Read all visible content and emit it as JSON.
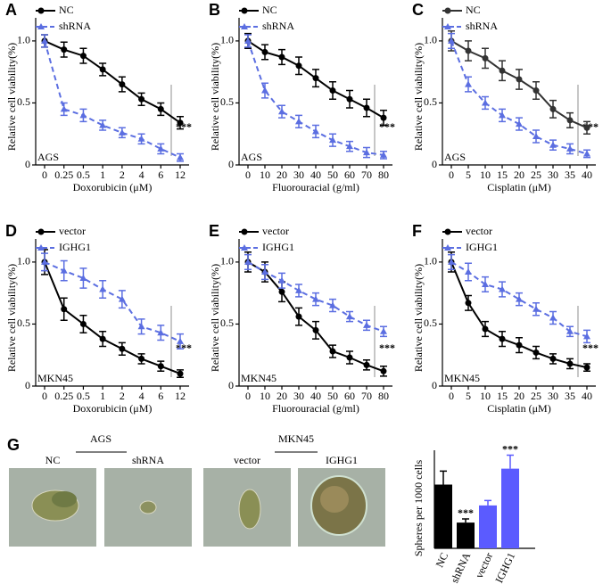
{
  "chart_data": [
    {
      "type": "line",
      "panel": "A",
      "ylabel": "Relative cell viability(%)",
      "xlabel": "Doxorubicin (μM)",
      "corner_label": "AGS",
      "annotation": "***",
      "categories": [
        "0",
        "0.25",
        "0.5",
        "1",
        "2",
        "4",
        "6",
        "12"
      ],
      "ylim": [
        0,
        1.1
      ],
      "yticks": [
        0,
        0.5,
        {
          "value": 1,
          "label": "1.0"
        }
      ],
      "series": [
        {
          "name": "NC",
          "color": "#000000",
          "dashed": false,
          "marker": "circle",
          "values": [
            1.0,
            0.93,
            0.88,
            0.77,
            0.65,
            0.53,
            0.45,
            0.34
          ],
          "errors": [
            0.05,
            0.06,
            0.06,
            0.05,
            0.06,
            0.05,
            0.05,
            0.05
          ]
        },
        {
          "name": "shRNA",
          "color": "#5b6ee1",
          "dashed": true,
          "marker": "triangle",
          "values": [
            1.0,
            0.45,
            0.4,
            0.32,
            0.26,
            0.21,
            0.13,
            0.06
          ],
          "errors": [
            0.05,
            0.05,
            0.05,
            0.04,
            0.04,
            0.04,
            0.04,
            0.03
          ]
        }
      ]
    },
    {
      "type": "line",
      "panel": "B",
      "ylabel": "Relative cell viability(%)",
      "xlabel": "Fluorouracial (g/ml)",
      "corner_label": "AGS",
      "annotation": "***",
      "categories": [
        "0",
        "10",
        "20",
        "30",
        "40",
        "50",
        "60",
        "70",
        "80"
      ],
      "ylim": [
        0,
        1.1
      ],
      "yticks": [
        0,
        0.5,
        {
          "value": 1,
          "label": "1.0"
        }
      ],
      "series": [
        {
          "name": "NC",
          "color": "#000000",
          "dashed": false,
          "marker": "circle",
          "values": [
            1.0,
            0.91,
            0.87,
            0.8,
            0.7,
            0.6,
            0.53,
            0.46,
            0.38
          ],
          "errors": [
            0.06,
            0.06,
            0.06,
            0.07,
            0.07,
            0.07,
            0.07,
            0.07,
            0.06
          ]
        },
        {
          "name": "shRNA",
          "color": "#5b6ee1",
          "dashed": true,
          "marker": "triangle",
          "values": [
            1.0,
            0.6,
            0.43,
            0.35,
            0.27,
            0.2,
            0.15,
            0.1,
            0.08
          ],
          "errors": [
            0.05,
            0.06,
            0.05,
            0.05,
            0.05,
            0.05,
            0.04,
            0.04,
            0.03
          ]
        }
      ]
    },
    {
      "type": "line",
      "panel": "C",
      "ylabel": "Relative cell viability(%)",
      "xlabel": "Cisplatin (μM)",
      "corner_label": "AGS",
      "annotation": "***",
      "categories": [
        "0",
        "5",
        "10",
        "15",
        "20",
        "25",
        "30",
        "35",
        "40"
      ],
      "ylim": [
        0,
        1.1
      ],
      "yticks": [
        0,
        0.5,
        {
          "value": 1,
          "label": "1.0"
        }
      ],
      "series": [
        {
          "name": "NC",
          "color": "#333333",
          "dashed": false,
          "marker": "circle",
          "values": [
            1.0,
            0.92,
            0.86,
            0.76,
            0.69,
            0.6,
            0.45,
            0.36,
            0.3
          ],
          "errors": [
            0.08,
            0.08,
            0.08,
            0.08,
            0.08,
            0.07,
            0.07,
            0.06,
            0.05
          ]
        },
        {
          "name": "shRNA",
          "color": "#5b6ee1",
          "dashed": true,
          "marker": "triangle",
          "values": [
            1.0,
            0.65,
            0.5,
            0.4,
            0.33,
            0.23,
            0.16,
            0.13,
            0.09
          ],
          "errors": [
            0.06,
            0.06,
            0.05,
            0.05,
            0.05,
            0.05,
            0.04,
            0.04,
            0.03
          ]
        }
      ]
    },
    {
      "type": "line",
      "panel": "D",
      "ylabel": "Relative cell viability(%)",
      "xlabel": "Doxorubicin (μM)",
      "corner_label": "MKN45",
      "annotation": "***",
      "categories": [
        "0",
        "0.25",
        "0.5",
        "1",
        "2",
        "4",
        "6",
        "12"
      ],
      "ylim": [
        0,
        1.1
      ],
      "yticks": [
        0,
        0.5,
        {
          "value": 1,
          "label": "1.0"
        }
      ],
      "series": [
        {
          "name": "vector",
          "color": "#000000",
          "dashed": false,
          "marker": "circle",
          "values": [
            1.0,
            0.62,
            0.5,
            0.38,
            0.3,
            0.22,
            0.16,
            0.1
          ],
          "errors": [
            0.1,
            0.09,
            0.07,
            0.06,
            0.05,
            0.04,
            0.04,
            0.03
          ]
        },
        {
          "name": "IGHG1",
          "color": "#5b6ee1",
          "dashed": true,
          "marker": "triangle",
          "values": [
            1.0,
            0.93,
            0.87,
            0.78,
            0.7,
            0.48,
            0.43,
            0.36
          ],
          "errors": [
            0.07,
            0.08,
            0.08,
            0.07,
            0.07,
            0.06,
            0.06,
            0.06
          ]
        }
      ]
    },
    {
      "type": "line",
      "panel": "E",
      "ylabel": "Relative cell viability(%)",
      "xlabel": "Fluorouracial (g/ml)",
      "corner_label": "MKN45",
      "annotation": "***",
      "categories": [
        "0",
        "10",
        "20",
        "30",
        "40",
        "50",
        "60",
        "70",
        "80"
      ],
      "ylim": [
        0,
        1.1
      ],
      "yticks": [
        0,
        0.5,
        {
          "value": 1,
          "label": "1.0"
        }
      ],
      "series": [
        {
          "name": "vector",
          "color": "#000000",
          "dashed": false,
          "marker": "circle",
          "values": [
            1.0,
            0.92,
            0.76,
            0.56,
            0.45,
            0.28,
            0.23,
            0.17,
            0.12
          ],
          "errors": [
            0.08,
            0.08,
            0.08,
            0.07,
            0.07,
            0.05,
            0.05,
            0.04,
            0.04
          ]
        },
        {
          "name": "IGHG1",
          "color": "#5b6ee1",
          "dashed": true,
          "marker": "triangle",
          "values": [
            1.0,
            0.92,
            0.85,
            0.77,
            0.7,
            0.65,
            0.56,
            0.49,
            0.44
          ],
          "errors": [
            0.06,
            0.06,
            0.06,
            0.05,
            0.05,
            0.05,
            0.04,
            0.04,
            0.04
          ]
        }
      ]
    },
    {
      "type": "line",
      "panel": "F",
      "ylabel": "Relative cell viability(%)",
      "xlabel": "Cisplatin (μM)",
      "corner_label": "MKN45",
      "annotation": "***",
      "categories": [
        "0",
        "5",
        "10",
        "15",
        "20",
        "25",
        "30",
        "35",
        "40"
      ],
      "ylim": [
        0,
        1.1
      ],
      "yticks": [
        0,
        0.5,
        {
          "value": 1,
          "label": "1.0"
        }
      ],
      "series": [
        {
          "name": "vector",
          "color": "#000000",
          "dashed": false,
          "marker": "circle",
          "values": [
            1.0,
            0.67,
            0.46,
            0.38,
            0.33,
            0.27,
            0.22,
            0.18,
            0.15
          ],
          "errors": [
            0.08,
            0.06,
            0.06,
            0.06,
            0.06,
            0.05,
            0.04,
            0.04,
            0.03
          ]
        },
        {
          "name": "IGHG1",
          "color": "#5b6ee1",
          "dashed": true,
          "marker": "triangle",
          "values": [
            1.0,
            0.92,
            0.82,
            0.78,
            0.7,
            0.62,
            0.55,
            0.44,
            0.4
          ],
          "errors": [
            0.06,
            0.07,
            0.06,
            0.06,
            0.05,
            0.05,
            0.05,
            0.04,
            0.05
          ]
        }
      ]
    },
    {
      "type": "bar",
      "ylabel": "Spheres per 1000 cells",
      "categories": [
        "NC",
        "shRNA",
        "vector",
        "IGHG1"
      ],
      "values": [
        52,
        21,
        35,
        65
      ],
      "errors": [
        11,
        3,
        4,
        11
      ],
      "colors": [
        "#000000",
        "#000000",
        "#5b5bff",
        "#5b5bff"
      ],
      "value_annotations": [
        null,
        "***",
        null,
        "***"
      ],
      "ylim": [
        0,
        80
      ]
    }
  ],
  "panel_g": {
    "label": "G",
    "groups": [
      {
        "title": "AGS",
        "images": [
          "NC",
          "shRNA"
        ]
      },
      {
        "title": "MKN45",
        "images": [
          "vector",
          "IGHG1"
        ]
      }
    ]
  }
}
